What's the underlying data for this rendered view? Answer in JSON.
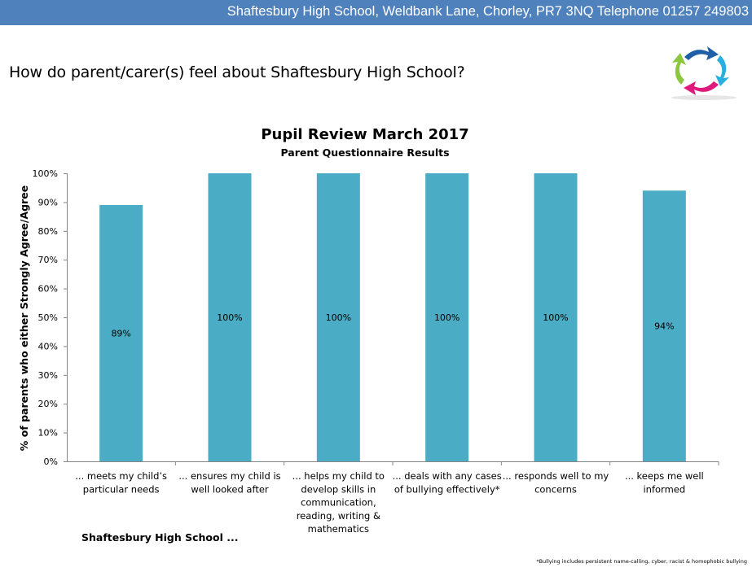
{
  "header": {
    "text": "Shaftesbury High School, Weldbank Lane, Chorley, PR7 3NQ Telephone 01257 249803"
  },
  "page": {
    "question": "How do parent/carer(s)  feel about Shaftesbury High School?"
  },
  "logo": {
    "icon": "four-arrows-logo-icon",
    "colors": [
      "#1f5fa8",
      "#29aee0",
      "#e0197d",
      "#8cc63f"
    ]
  },
  "chart_data": {
    "type": "bar",
    "title": "Pupil Review March 2017",
    "subtitle": "Parent Questionnaire Results",
    "ylabel": "% of parents who either Strongly Agree/Agree",
    "xlabel": "Shaftesbury High School ...",
    "ylim": [
      0,
      100
    ],
    "yticks": [
      "0%",
      "10%",
      "20%",
      "30%",
      "40%",
      "50%",
      "60%",
      "70%",
      "80%",
      "90%",
      "100%"
    ],
    "grid": false,
    "bar_color": "#4bacc6",
    "categories": [
      [
        "... meets my child’s",
        "particular needs"
      ],
      [
        "... ensures my child is",
        "well looked after"
      ],
      [
        "... helps my child to",
        "develop skills in",
        "communication,",
        "reading, writing &",
        "mathematics"
      ],
      [
        "... deals with any cases",
        "of bullying effectively*"
      ],
      [
        "... responds well to my",
        "concerns"
      ],
      [
        "... keeps me well",
        "informed"
      ]
    ],
    "values": [
      89,
      100,
      100,
      100,
      100,
      94
    ],
    "data_labels": [
      "89%",
      "100%",
      "100%",
      "100%",
      "100%",
      "94%"
    ],
    "footnote": "*Bullying includes persistent name-calling, cyber, racist & homophobic bullying"
  }
}
